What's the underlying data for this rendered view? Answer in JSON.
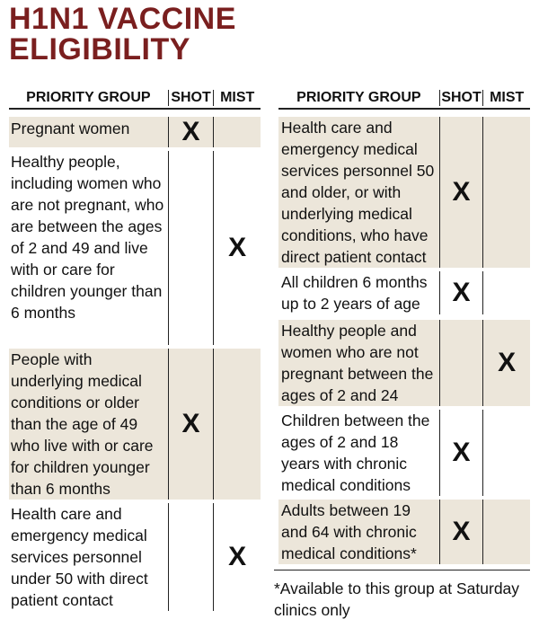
{
  "title": {
    "line1": "H1N1 VACCINE",
    "line2": "ELIGIBILITY"
  },
  "headers": {
    "group": "PRIORITY GROUP",
    "shot": "SHOT",
    "mist": "MIST"
  },
  "left_rows": [
    {
      "group": "Pregnant women",
      "shot": "X",
      "mist": ""
    },
    {
      "group": "Healthy people, including women who are not pregnant, who are between the ages of 2 and 49 and live with or care for children younger than 6 months",
      "shot": "",
      "mist": "X"
    },
    {
      "group": "People with underlying medical conditions or older than the age of 49 who live with or care for children younger than 6 months",
      "shot": "X",
      "mist": ""
    },
    {
      "group": "Health care and emergency medical services personnel under 50 with direct patient contact",
      "shot": "",
      "mist": "X"
    }
  ],
  "right_rows": [
    {
      "group": "Health care and emergency medical services personnel 50 and older, or with underlying medical conditions, who have direct patient contact",
      "shot": "X",
      "mist": ""
    },
    {
      "group": "All children 6 months up to 2 years of age",
      "shot": "X",
      "mist": ""
    },
    {
      "group": "Healthy people and women who are not pregnant between the ages of 2 and 24",
      "shot": "",
      "mist": "X"
    },
    {
      "group": "Children between the ages of 2 and 18 years with chronic medical conditions",
      "shot": "X",
      "mist": ""
    },
    {
      "group": "Adults between 19 and 64 with chronic medical conditions*",
      "shot": "X",
      "mist": ""
    }
  ],
  "footnote": "*Available to this group at Saturday clinics only"
}
